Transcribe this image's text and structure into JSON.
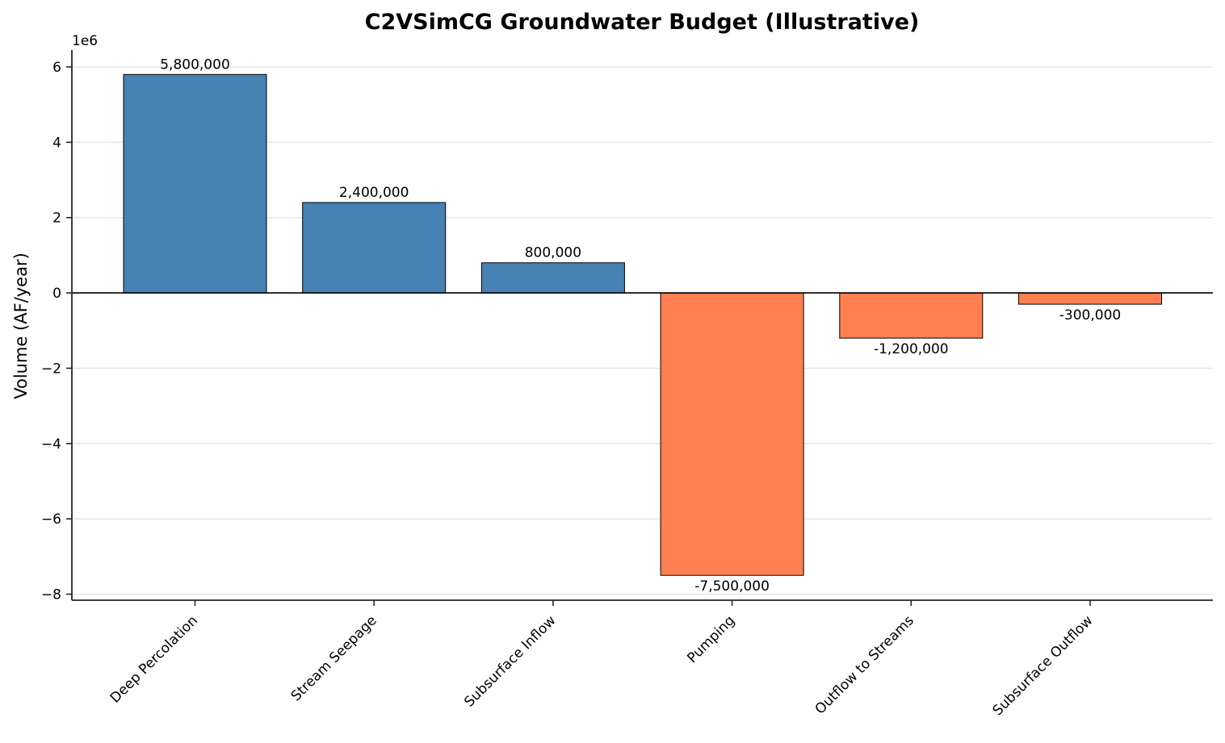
{
  "chart_data": {
    "type": "bar",
    "title": "C2VSimCG Groundwater Budget (Illustrative)",
    "xlabel": "",
    "ylabel": "Volume (AF/year)",
    "y_offset_label": "1e6",
    "ylim": [
      -8160000,
      6450000
    ],
    "yticks": [
      6000000,
      4000000,
      2000000,
      0,
      -2000000,
      -4000000,
      -6000000,
      -8000000
    ],
    "ytick_labels": [
      "6",
      "4",
      "2",
      "0",
      "−2",
      "−4",
      "−6",
      "−8"
    ],
    "grid": true,
    "categories": [
      "Deep Percolation",
      "Stream Seepage",
      "Subsurface Inflow",
      "Pumping",
      "Outflow to Streams",
      "Subsurface Outflow"
    ],
    "values": [
      5800000,
      2400000,
      800000,
      -7500000,
      -1200000,
      -300000
    ],
    "data_labels": [
      "5,800,000",
      "2,400,000",
      "800,000",
      "-7,500,000",
      "-1,200,000",
      "-300,000"
    ],
    "colors": {
      "positive": "#4682b4",
      "negative": "#ff7f50",
      "edge": "#000000",
      "grid": "#e6e6e6",
      "axis": "#262626"
    }
  }
}
